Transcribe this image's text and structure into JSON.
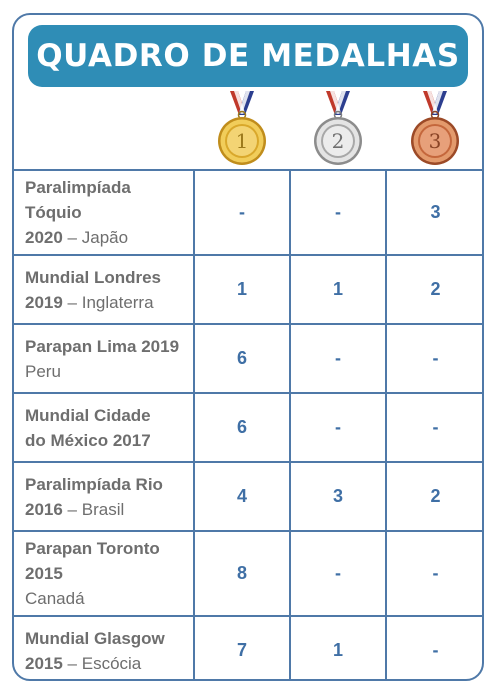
{
  "title": "QUADRO DE MEDALHAS",
  "medals": [
    {
      "numeral": "1",
      "name": "gold-medal-icon"
    },
    {
      "numeral": "2",
      "name": "silver-medal-icon"
    },
    {
      "numeral": "3",
      "name": "bronze-medal-icon"
    }
  ],
  "colors": {
    "frame": "#4f79a8",
    "title_bar": "#2f8db6",
    "count_text": "#3f6fa5",
    "event_text": "#6e6e6e",
    "gold": "#d9a82b",
    "silver": "#a8a8a8",
    "bronze": "#c4673c"
  },
  "rows": [
    {
      "event_bold_1": "Paralimpíada",
      "event_bold_2": "Tóquio",
      "event_bold_3": "2020",
      "event_sep": " – ",
      "event_place": "Japão",
      "gold": "-",
      "silver": "-",
      "bronze": "3"
    },
    {
      "event_bold_1": "Mundial Londres",
      "event_bold_2": "2019",
      "event_sep": " – ",
      "event_place": "Inglaterra",
      "gold": "1",
      "silver": "1",
      "bronze": "2"
    },
    {
      "event_bold_1": "Parapan Lima 2019",
      "event_place": "Peru",
      "gold": "6",
      "silver": "-",
      "bronze": "-"
    },
    {
      "event_bold_1": "Mundial Cidade",
      "event_bold_2": "do México 2017",
      "gold": "6",
      "silver": "-",
      "bronze": "-"
    },
    {
      "event_bold_1": "Paralimpíada Rio",
      "event_bold_2": "2016",
      "event_sep": " – ",
      "event_place": "Brasil",
      "gold": "4",
      "silver": "3",
      "bronze": "2"
    },
    {
      "event_bold_1": "Parapan Toronto",
      "event_bold_2": "2015",
      "event_place": "Canadá",
      "gold": "8",
      "silver": "-",
      "bronze": "-"
    },
    {
      "event_bold_1": "Mundial Glasgow",
      "event_bold_2": "2015",
      "event_sep": " – ",
      "event_place": "Escócia",
      "gold": "7",
      "silver": "1",
      "bronze": "-"
    }
  ]
}
